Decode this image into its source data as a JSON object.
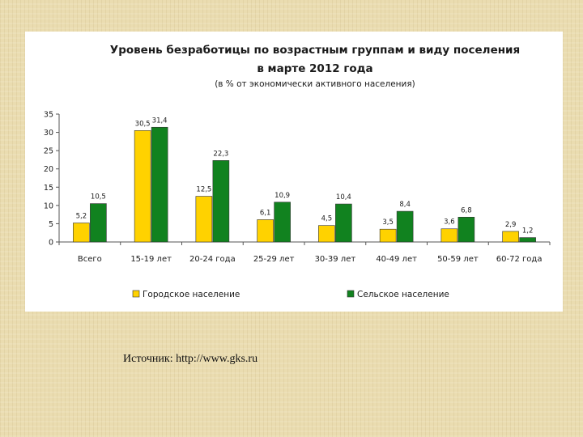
{
  "chart_data": {
    "type": "bar",
    "title": "Уровень безработицы по возрастным группам и виду поселения",
    "title_line2": "в марте 2012 года",
    "subtitle": "(в % от экономически активного населения)",
    "categories": [
      "Всего",
      "15-19 лет",
      "20-24 года",
      "25-29 лет",
      "30-39 лет",
      "40-49 лет",
      "50-59 лет",
      "60-72 года"
    ],
    "series": [
      {
        "name": "Городское население",
        "color": "#ffd200",
        "values": [
          5.2,
          30.5,
          12.5,
          6.1,
          4.5,
          3.5,
          3.6,
          2.9
        ],
        "labels": [
          "5,2",
          "30,5",
          "12,5",
          "6,1",
          "4,5",
          "3,5",
          "3,6",
          "2,9"
        ]
      },
      {
        "name": "Сельское население",
        "color": "#11821f",
        "values": [
          10.5,
          31.4,
          22.3,
          10.9,
          10.4,
          8.4,
          6.8,
          1.2
        ],
        "labels": [
          "10,5",
          "31,4",
          "22,3",
          "10,9",
          "10,4",
          "8,4",
          "6,8",
          "1,2"
        ]
      }
    ],
    "ylim": [
      0,
      35
    ],
    "yticks": [
      0,
      5,
      10,
      15,
      20,
      25,
      30,
      35
    ],
    "grid": false,
    "legend_position": "bottom"
  },
  "source": "Источник: http://www.gks.ru"
}
